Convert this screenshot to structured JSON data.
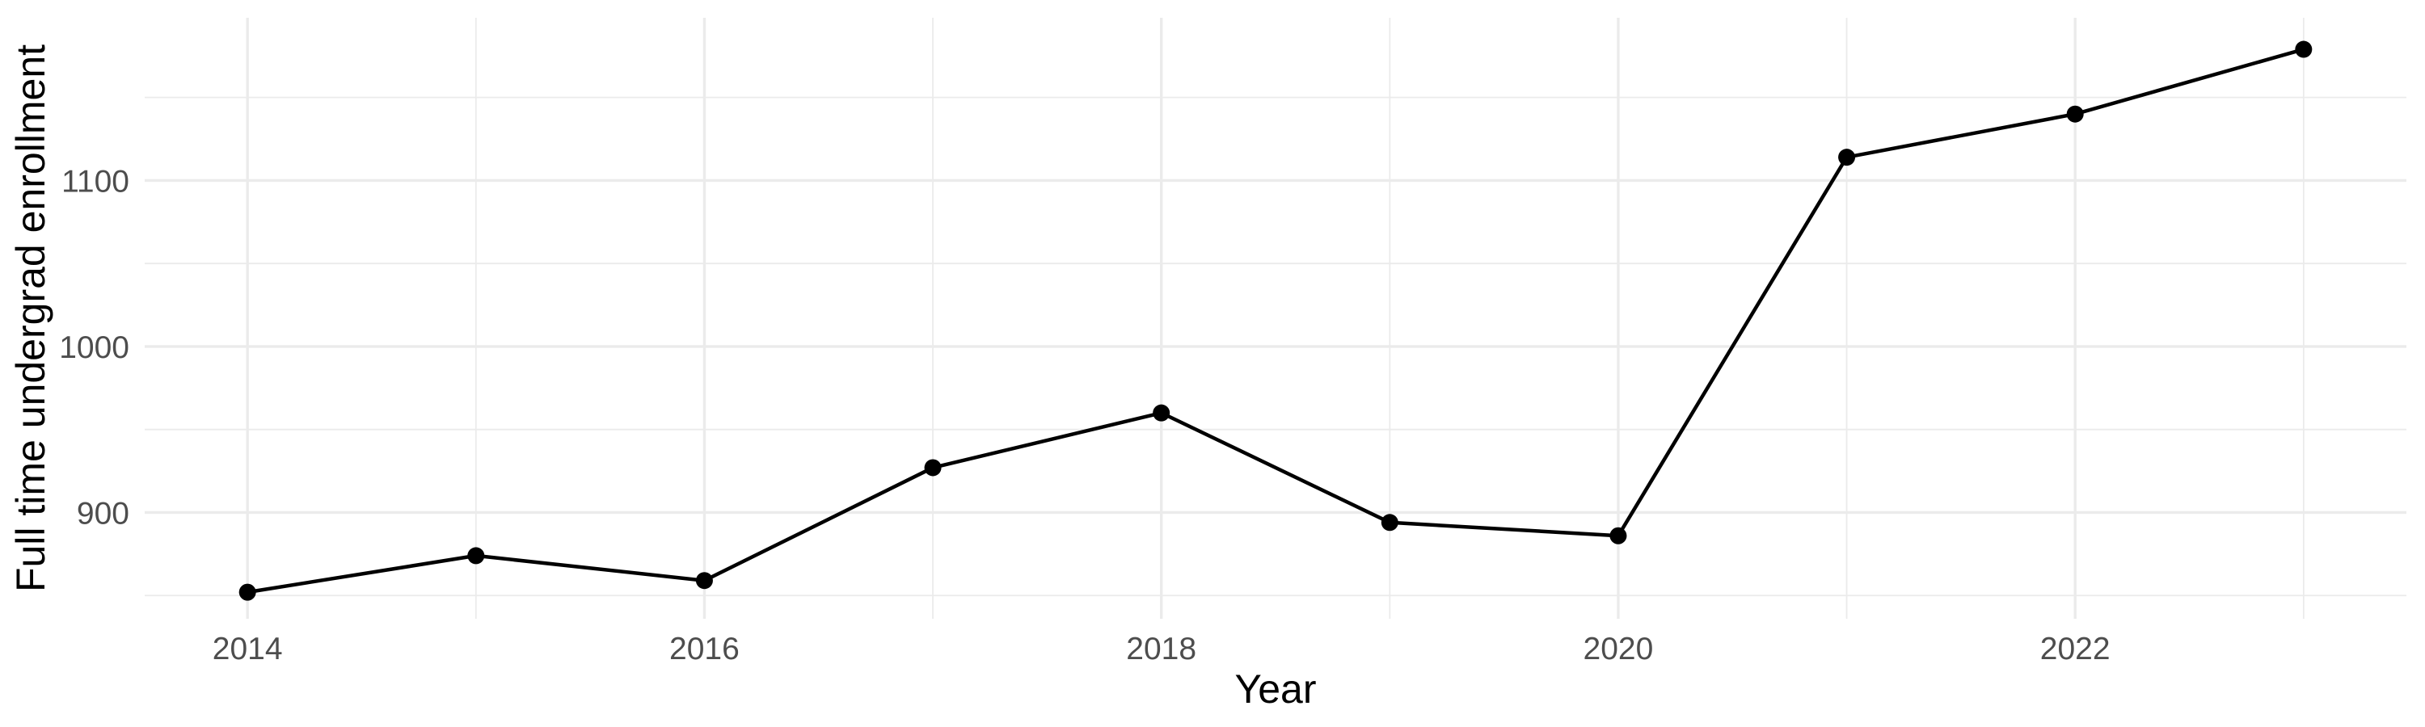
{
  "chart_data": {
    "type": "line",
    "title": "",
    "xlabel": "Year",
    "ylabel": "Full time undergrad enrollment",
    "x": [
      2014,
      2015,
      2016,
      2017,
      2018,
      2019,
      2020,
      2021,
      2022,
      2023
    ],
    "values": [
      852,
      874,
      859,
      927,
      960,
      894,
      886,
      1114,
      1140,
      1179
    ],
    "series": [
      {
        "name": "Full time undergrad enrollment",
        "values": [
          852,
          874,
          859,
          927,
          960,
          894,
          886,
          1114,
          1140,
          1179
        ]
      }
    ],
    "x_tick_labels": [
      "2014",
      "2016",
      "2018",
      "2020",
      "2022"
    ],
    "x_tick_positions": [
      2014,
      2016,
      2018,
      2020,
      2022
    ],
    "x_minor_gridlines": [
      2015,
      2017,
      2019,
      2021,
      2023
    ],
    "y_tick_labels": [
      "900",
      "1000",
      "1100"
    ],
    "y_tick_positions": [
      900,
      1000,
      1100
    ],
    "y_minor_gridlines": [
      850,
      950,
      1050,
      1150
    ],
    "xlim": [
      2013.55,
      2023.45
    ],
    "ylim": [
      836,
      1198
    ],
    "grid": true,
    "legend_position": "none",
    "marker": "filled-circle",
    "style": {
      "line_color": "#000000",
      "point_color": "#000000",
      "grid_major_color": "#ebebeb",
      "grid_minor_color": "#ebebeb",
      "tick_label_color": "#4d4d4d",
      "axis_title_color": "#000000",
      "background": "#ffffff"
    }
  }
}
